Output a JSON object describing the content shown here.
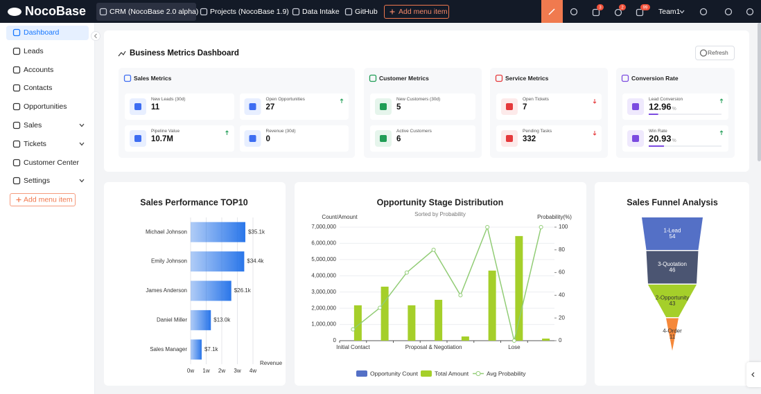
{
  "nav": {
    "logo": "NocoBase",
    "tabs": [
      "CRM (NocoBase 2.0 alpha)",
      "Projects (NocoBase 1.9)",
      "Data Intake",
      "GitHub"
    ],
    "add_menu": "Add menu item",
    "badges": [
      "3",
      "2",
      "99"
    ],
    "user": "Team1"
  },
  "sidebar": {
    "items": [
      "Dashboard",
      "Leads",
      "Accounts",
      "Contacts",
      "Opportunities",
      "Sales",
      "Tickets",
      "Customer Center",
      "Settings"
    ],
    "add_menu": "Add menu item"
  },
  "dashboard": {
    "title": "Business Metrics Dashboard",
    "refresh": "Refresh",
    "groups": [
      {
        "title": "Sales Metrics",
        "metrics": [
          {
            "label": "New Leads (30d)",
            "value": 11
          },
          {
            "label": "Open Opportunities",
            "value": 27
          },
          {
            "label": "Pipeline Value",
            "value": "10.7M"
          },
          {
            "label": "Revenue (30d)",
            "value": 0
          }
        ]
      },
      {
        "title": "Customer Metrics",
        "metrics": [
          {
            "label": "New Customers (30d)",
            "value": 5
          },
          {
            "label": "Active Customers",
            "value": 6
          }
        ]
      },
      {
        "title": "Service Metrics",
        "metrics": [
          {
            "label": "Open Tickets",
            "value": 7
          },
          {
            "label": "Pending Tasks",
            "value": 332
          }
        ]
      },
      {
        "title": "Conversion Rate",
        "metrics": [
          {
            "label": "Lead Conversion",
            "value": 12.96,
            "unit": "%"
          },
          {
            "label": "Win Rate",
            "value": 20.93,
            "unit": "%"
          }
        ]
      }
    ]
  },
  "chart_data": [
    {
      "type": "bar",
      "title": "Sales Performance TOP10",
      "categories": [
        "Michael Johnson",
        "Emily Johnson",
        "James Anderson",
        "Daniel Miller",
        "Sales Manager"
      ],
      "values": [
        35100,
        34400,
        26100,
        13000,
        7100
      ],
      "value_labels": [
        "$35.1k",
        "$34.4k",
        "$26.1k",
        "$13.0k",
        "$7.1k"
      ],
      "x_label": "Revenue",
      "color": "#1f6fe8",
      "xlim": [
        0,
        40000
      ],
      "xticks": [
        {
          "value": 0,
          "label": "0w"
        },
        {
          "value": 10000,
          "label": "1w"
        },
        {
          "value": 20000,
          "label": "2w"
        },
        {
          "value": 30000,
          "label": "3w"
        },
        {
          "value": 40000,
          "label": "4w"
        }
      ]
    },
    {
      "type": "combo",
      "title": "Opportunity Stage Distribution",
      "subtitle": "Sorted by Probability",
      "y_label": "Count/Amount",
      "y2_label": "Probability(%)",
      "categories": [
        "Initial Contact",
        null,
        null,
        "Proposal & Negotiation",
        null,
        null,
        "Lose",
        null
      ],
      "series": [
        {
          "name": "Opportunity Count",
          "color": "#5470c6",
          "kind": "bar",
          "values": [
            3,
            4,
            2,
            3,
            1,
            5,
            6,
            1
          ]
        },
        {
          "name": "Total Amount",
          "color": "#a5cf2a",
          "kind": "bar",
          "values": [
            2180000,
            3330000,
            2180000,
            2520000,
            260000,
            4320000,
            6450000,
            130000
          ]
        },
        {
          "name": "Avg Probability",
          "color": "#91cc75",
          "kind": "line",
          "axis": "y2",
          "values": [
            10,
            29,
            60,
            80,
            40,
            100,
            0,
            100
          ]
        }
      ],
      "ylim": [
        0,
        7000000
      ],
      "yticks": [
        0,
        {
          "value": 1000000,
          "label": "1,000,000"
        },
        {
          "value": 2000000,
          "label": "2,000,000"
        },
        {
          "value": 3000000,
          "label": "3,000,000"
        },
        {
          "value": 4000000,
          "label": "4,000,000"
        },
        {
          "value": 5000000,
          "label": "5,000,000"
        },
        {
          "value": 6000000,
          "label": "6,000,000"
        },
        {
          "value": 7000000,
          "label": "7,000,000"
        }
      ],
      "y2lim": [
        0,
        100
      ],
      "y2ticks": [
        0,
        20,
        40,
        60,
        80,
        100
      ],
      "grid": true
    },
    {
      "type": "funnel",
      "title": "Sales Funnel Analysis",
      "categories": [
        "1-Lead",
        "3-Quotation",
        "2-Opportunity",
        "4-Order"
      ],
      "values": [
        54,
        46,
        43,
        11
      ],
      "colors": [
        "#5470c6",
        "#4b5572",
        "#a5cf2a",
        "#f5883a"
      ]
    }
  ]
}
